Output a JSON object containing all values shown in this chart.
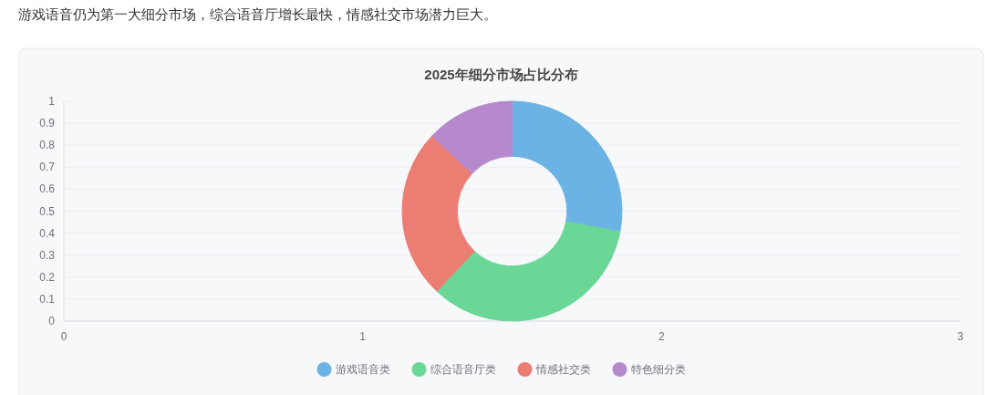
{
  "chart_data": [
    {
      "type": "scatter",
      "xlim": [
        0,
        3
      ],
      "xticks": [
        0,
        1,
        2,
        3
      ],
      "ylim": [
        0,
        1
      ],
      "yticks": [
        0,
        0.1,
        0.2,
        0.3,
        0.4,
        0.5,
        0.6,
        0.7,
        0.8,
        0.9,
        1
      ],
      "grid": "y"
    },
    {
      "type": "donut",
      "title": "2025年细分市场占比分布",
      "annotations": [
        "游戏语音仍为第一大细分市场，综合语音厅增长最快，情感社交市场潜力巨大。"
      ],
      "categories": [
        "游戏语音类",
        "综合语音厅类",
        "情感社交类",
        "特色细分类"
      ],
      "values": [
        28,
        34,
        25,
        13
      ],
      "colors": [
        "#6bb3e4",
        "#6ad797",
        "#ec7d73",
        "#b589cc"
      ],
      "legend": "bottom"
    }
  ]
}
